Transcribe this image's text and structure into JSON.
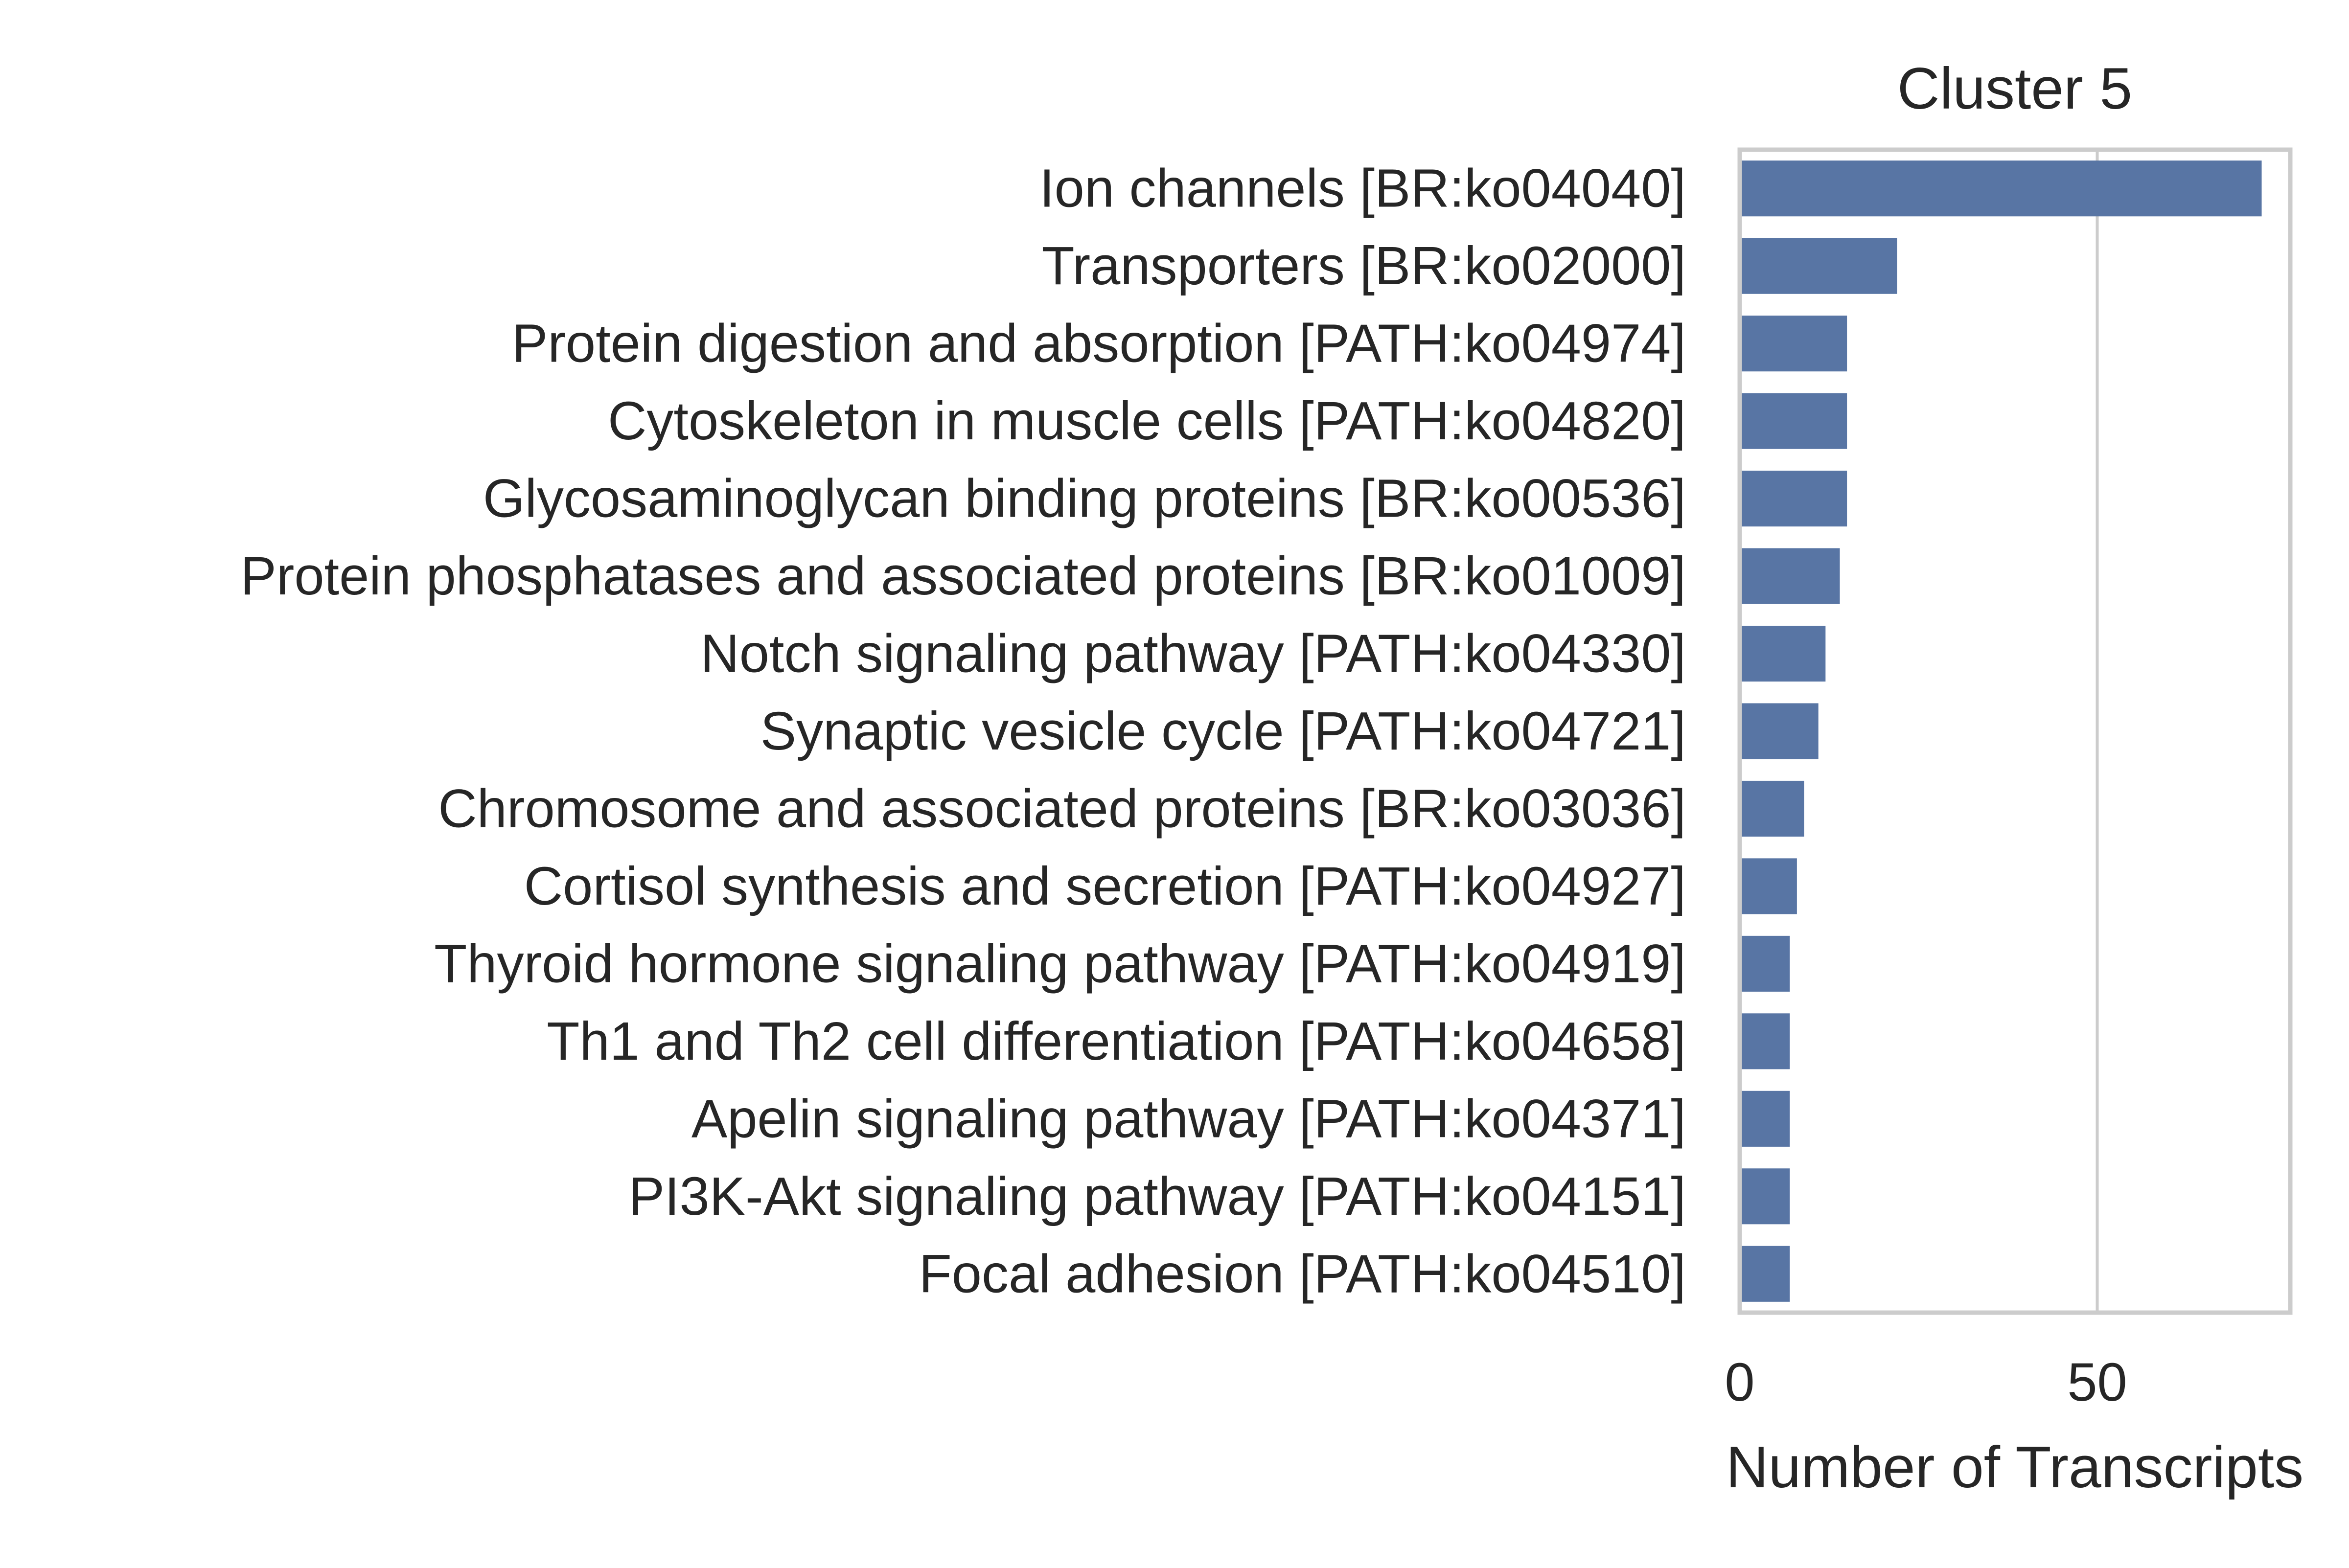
{
  "chart_data": {
    "type": "bar",
    "orientation": "horizontal",
    "title": "Cluster 5",
    "xlabel": "Number of Transcripts",
    "ylabel": "",
    "xlim": [
      0,
      77
    ],
    "xticks": [
      0,
      50
    ],
    "grid": true,
    "bar_color": "#5875a4",
    "categories": [
      "Ion channels [BR:ko04040]",
      "Transporters [BR:ko02000]",
      "Protein digestion and absorption [PATH:ko04974]",
      "Cytoskeleton in muscle cells [PATH:ko04820]",
      "Glycosaminoglycan binding proteins [BR:ko00536]",
      "Protein phosphatases and associated proteins [BR:ko01009]",
      "Notch signaling pathway [PATH:ko04330]",
      "Synaptic vesicle cycle [PATH:ko04721]",
      "Chromosome and associated proteins [BR:ko03036]",
      "Cortisol synthesis and secretion [PATH:ko04927]",
      "Thyroid hormone signaling pathway [PATH:ko04919]",
      "Th1 and Th2 cell differentiation [PATH:ko04658]",
      "Apelin signaling pathway [PATH:ko04371]",
      "PI3K-Akt signaling pathway [PATH:ko04151]",
      "Focal adhesion [PATH:ko04510]"
    ],
    "values": [
      73,
      22,
      15,
      15,
      15,
      14,
      12,
      11,
      9,
      8,
      7,
      7,
      7,
      7,
      7
    ]
  }
}
